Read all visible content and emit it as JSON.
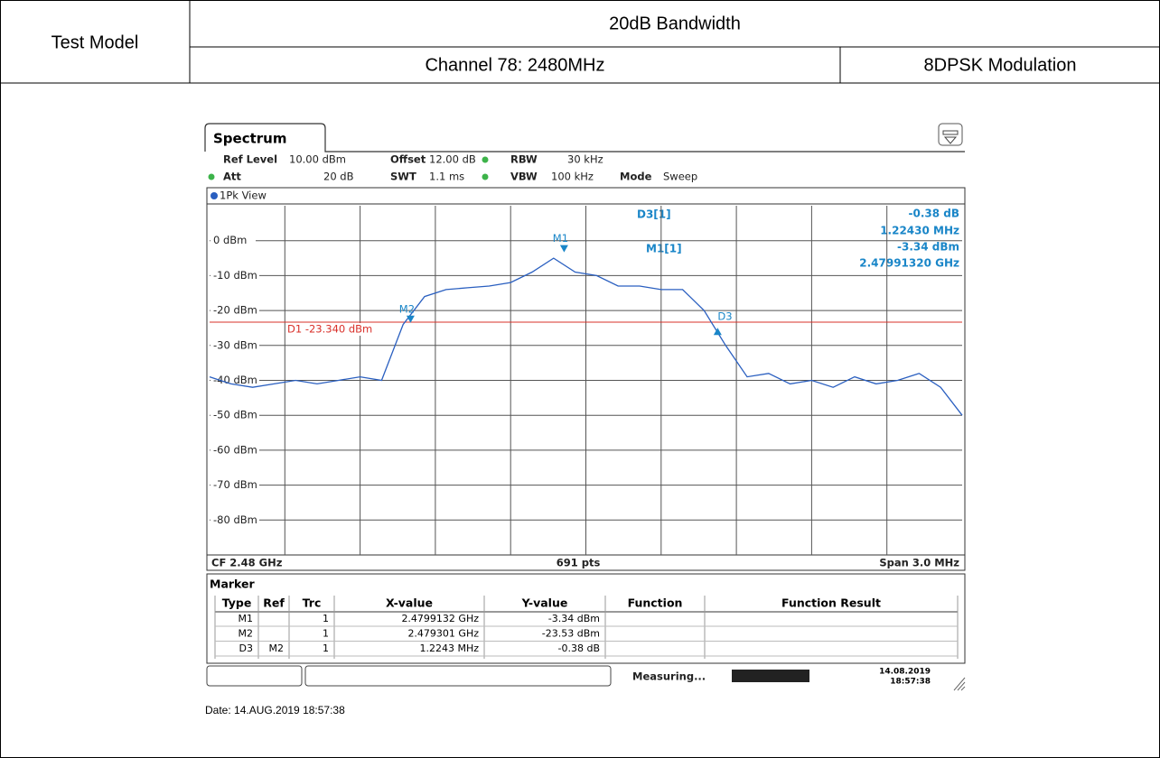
{
  "header": {
    "test_model": "Test Model",
    "test_item": "20dB Bandwidth",
    "channel": "Channel 78: 2480MHz",
    "modulation": "8DPSK Modulation"
  },
  "date": "Date: 14.AUG.2019  18:57:38",
  "analyzer": {
    "tab": "Spectrum",
    "settings": [
      {
        "name": "Ref Level",
        "value": "10.00 dBm"
      },
      {
        "name": "Offset",
        "value": "12.00 dB"
      },
      {
        "name": "RBW",
        "value": "30 kHz"
      },
      {
        "name": "Att",
        "value": "20 dB"
      },
      {
        "name": "SWT",
        "value": "1.1 ms"
      },
      {
        "name": "VBW",
        "value": "100 kHz"
      },
      {
        "name": "Mode",
        "value": "Sweep"
      }
    ],
    "view": "1Pk View",
    "readout": [
      {
        "name": "D3[1]",
        "lines": [
          "-0.38 dB",
          "1.22430 MHz"
        ]
      },
      {
        "name": "M1[1]",
        "lines": [
          "-3.34 dBm",
          "2.47991320 GHz"
        ]
      }
    ],
    "center": "CF 2.48 GHz",
    "points": "691 pts",
    "span": "Span 3.0 MHz",
    "marker_table": {
      "title": "Marker",
      "columns": [
        "Type",
        "Ref",
        "Trc",
        "X-value",
        "Y-value",
        "Function",
        "Function Result"
      ],
      "rows": [
        {
          "type": "M1",
          "trc": "1",
          "x": "2.4799132 GHz",
          "y": "-3.34 dBm"
        },
        {
          "type": "M2",
          "trc": "1",
          "x": "2.479301 GHz",
          "y": "-23.53 dBm"
        },
        {
          "type": "D3",
          "ref": "M2",
          "trc": "1",
          "x": "1.2243 MHz",
          "y": "-0.38 dB"
        }
      ]
    },
    "status": "Measuring...",
    "status_date": "14.08.2019",
    "status_time": "18:57:38"
  },
  "chart_data": {
    "type": "line",
    "xlim": [
      2.4785,
      2.4815
    ],
    "ylim": [
      -90,
      10
    ],
    "yticks": [
      {
        "value": 0,
        "label": "0 dBm"
      },
      {
        "value": -10,
        "label": "-10 dBm"
      },
      {
        "value": -20,
        "label": "-20 dBm"
      },
      {
        "value": -30,
        "label": "-30 dBm"
      },
      {
        "value": -40,
        "label": "-40 dBm"
      },
      {
        "value": -50,
        "label": "-50 dBm"
      },
      {
        "value": -60,
        "label": "-60 dBm"
      },
      {
        "value": -70,
        "label": "-70 dBm"
      },
      {
        "value": -80,
        "label": "-80 dBm"
      }
    ],
    "grid": true,
    "trace": {
      "color": "#2a5fc0",
      "values": [
        -39,
        -41,
        -42,
        -41,
        -40,
        -41,
        -40,
        -39,
        -40,
        -24,
        -16,
        -14,
        -13.5,
        -13,
        -12,
        -9,
        -5,
        -9,
        -10,
        -13,
        -13,
        -14,
        -14,
        -20,
        -30,
        -39,
        -38,
        -41,
        -40,
        -42,
        -39,
        -41,
        -40,
        -38,
        -42,
        -50
      ]
    },
    "display_line": {
      "label": "D1 -23.340 dBm",
      "value": -23.34,
      "color": "#d9302a"
    },
    "markers": [
      {
        "name": "M1",
        "x": 2.4799132,
        "y": -3.34
      },
      {
        "name": "M2",
        "x": 2.479301,
        "y": -23.53
      },
      {
        "name": "D3",
        "x": 2.4805253,
        "y": -23.91
      }
    ]
  }
}
